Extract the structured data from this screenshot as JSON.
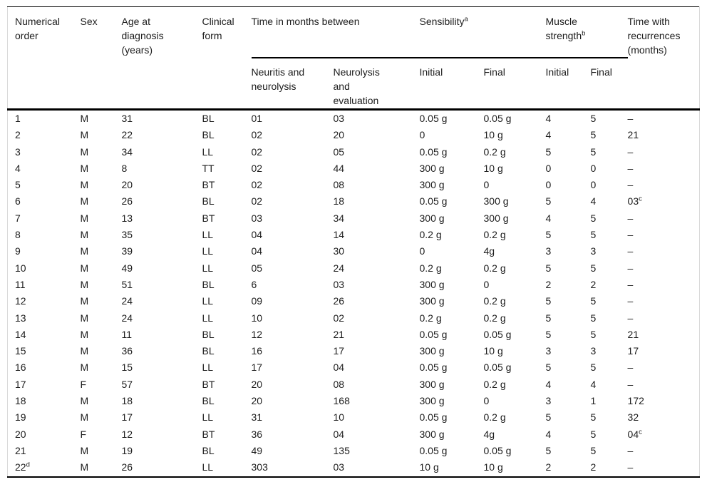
{
  "table": {
    "header": {
      "numerical_order": "Numerical\norder",
      "sex": "Sex",
      "age": "Age at\ndiagnosis\n(years)",
      "clinical_form": "Clinical\nform",
      "time_between": "Time in months between",
      "sensibility": {
        "label": "Sensibility",
        "sup": "a"
      },
      "muscle_strength": {
        "label": "Muscle\nstrength",
        "sup": "b"
      },
      "recurrences": "Time with\nrecurrences\n(months)",
      "sub_cols": [
        "Neuritis and\nneurolysis",
        "Neurolysis\nand\nevaluation",
        "Initial",
        "Final",
        "Initial",
        "Final"
      ]
    },
    "rows": [
      [
        "1",
        "M",
        "31",
        "BL",
        "01",
        "03",
        "0.05 g",
        "0.05 g",
        "4",
        "5",
        "–"
      ],
      [
        "2",
        "M",
        "22",
        "BL",
        "02",
        "20",
        "0",
        "10 g",
        "4",
        "5",
        "21"
      ],
      [
        "3",
        "M",
        "34",
        "LL",
        "02",
        "05",
        "0.05 g",
        "0.2 g",
        "5",
        "5",
        "–"
      ],
      [
        "4",
        "M",
        "8",
        "TT",
        "02",
        "44",
        "300 g",
        "10 g",
        "0",
        "0",
        "–"
      ],
      [
        "5",
        "M",
        "20",
        "BT",
        "02",
        "08",
        "300 g",
        "0",
        "0",
        "0",
        "–"
      ],
      [
        "6",
        "M",
        "26",
        "BL",
        "02",
        "18",
        "0.05 g",
        "300 g",
        "5",
        "4",
        {
          "v": "03",
          "sup": "c"
        }
      ],
      [
        "7",
        "M",
        "13",
        "BT",
        "03",
        "34",
        "300 g",
        "300 g",
        "4",
        "5",
        "–"
      ],
      [
        "8",
        "M",
        "35",
        "LL",
        "04",
        "14",
        "0.2 g",
        "0.2 g",
        "5",
        "5",
        "–"
      ],
      [
        "9",
        "M",
        "39",
        "LL",
        "04",
        "30",
        "0",
        "4g",
        "3",
        "3",
        "–"
      ],
      [
        "10",
        "M",
        "49",
        "LL",
        "05",
        "24",
        "0.2 g",
        "0.2 g",
        "5",
        "5",
        "–"
      ],
      [
        "11",
        "M",
        "51",
        "BL",
        "6",
        "03",
        "300 g",
        "0",
        "2",
        "2",
        "–"
      ],
      [
        "12",
        "M",
        "24",
        "LL",
        "09",
        "26",
        "300 g",
        "0.2 g",
        "5",
        "5",
        "–"
      ],
      [
        "13",
        "M",
        "24",
        "LL",
        "10",
        "02",
        "0.2 g",
        "0.2 g",
        "5",
        "5",
        "–"
      ],
      [
        "14",
        "M",
        "11",
        "BL",
        "12",
        "21",
        "0.05 g",
        "0.05 g",
        "5",
        "5",
        "21"
      ],
      [
        "15",
        "M",
        "36",
        "BL",
        "16",
        "17",
        "300 g",
        "10 g",
        "3",
        "3",
        "17"
      ],
      [
        "16",
        "M",
        "15",
        "LL",
        "17",
        "04",
        "0.05 g",
        "0.05 g",
        "5",
        "5",
        "–"
      ],
      [
        "17",
        "F",
        "57",
        "BT",
        "20",
        "08",
        "300 g",
        "0.2 g",
        "4",
        "4",
        "–"
      ],
      [
        "18",
        "M",
        "18",
        "BL",
        "20",
        "168",
        "300 g",
        "0",
        "3",
        "1",
        "172"
      ],
      [
        "19",
        "M",
        "17",
        "LL",
        "31",
        "10",
        "0.05 g",
        "0.2 g",
        "5",
        "5",
        "32"
      ],
      [
        "20",
        "F",
        "12",
        "BT",
        "36",
        "04",
        "300 g",
        "4g",
        "4",
        "5",
        {
          "v": "04",
          "sup": "c"
        }
      ],
      [
        "21",
        "M",
        "19",
        "BL",
        "49",
        "135",
        "0.05 g",
        "0.05 g",
        "5",
        "5",
        "–"
      ],
      [
        {
          "v": "22",
          "sup": "d"
        },
        "M",
        "26",
        "LL",
        "303",
        "03",
        "10 g",
        "10 g",
        "2",
        "2",
        "–"
      ]
    ]
  }
}
